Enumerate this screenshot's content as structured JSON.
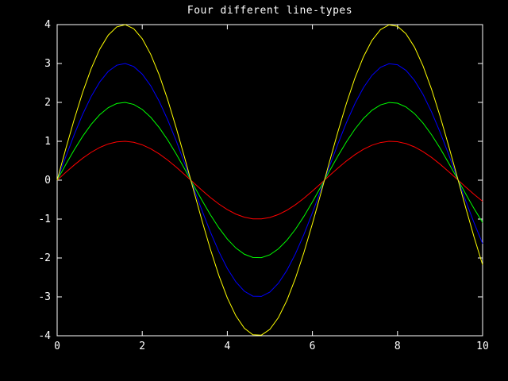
{
  "chart_data": {
    "type": "line",
    "title": "Four different line-types",
    "xlabel": "",
    "ylabel": "",
    "xlim": [
      0,
      10
    ],
    "ylim": [
      -4,
      4
    ],
    "grid": false,
    "x_ticks": [
      "0",
      "2",
      "4",
      "6",
      "8",
      "10"
    ],
    "y_ticks": [
      "4",
      "3",
      "2",
      "1",
      "0",
      "-1",
      "-2",
      "-3",
      "-4"
    ],
    "x": [
      0.0,
      0.2,
      0.4,
      0.6,
      0.8,
      1.0,
      1.2,
      1.4,
      1.6,
      1.8,
      2.0,
      2.2,
      2.4,
      2.6,
      2.8,
      3.0,
      3.2,
      3.4,
      3.6,
      3.8,
      4.0,
      4.2,
      4.4,
      4.6,
      4.8,
      5.0,
      5.2,
      5.4,
      5.6,
      5.8,
      6.0,
      6.2,
      6.4,
      6.6,
      6.8,
      7.0,
      7.2,
      7.4,
      7.6,
      7.8,
      8.0,
      8.2,
      8.4,
      8.6,
      8.8,
      9.0,
      9.2,
      9.4,
      9.6,
      9.8,
      10.0
    ],
    "series": [
      {
        "color": "#ff0000",
        "values": [
          0.0,
          0.199,
          0.389,
          0.565,
          0.717,
          0.841,
          0.932,
          0.985,
          1.0,
          0.974,
          0.909,
          0.808,
          0.675,
          0.516,
          0.335,
          0.141,
          -0.058,
          -0.256,
          -0.443,
          -0.612,
          -0.757,
          -0.872,
          -0.952,
          -0.994,
          -0.996,
          -0.959,
          -0.883,
          -0.773,
          -0.631,
          -0.465,
          -0.279,
          -0.083,
          0.117,
          0.312,
          0.494,
          0.657,
          0.794,
          0.899,
          0.968,
          0.999,
          0.989,
          0.941,
          0.855,
          0.734,
          0.585,
          0.412,
          0.223,
          0.025,
          -0.174,
          -0.366,
          -0.544
        ]
      },
      {
        "color": "#00ff00",
        "values": [
          0.0,
          0.397,
          0.779,
          1.129,
          1.435,
          1.683,
          1.864,
          1.971,
          1.999,
          1.948,
          1.819,
          1.617,
          1.351,
          1.031,
          0.67,
          0.282,
          -0.117,
          -0.511,
          -0.885,
          -1.224,
          -1.514,
          -1.743,
          -1.903,
          -1.987,
          -1.992,
          -1.918,
          -1.766,
          -1.545,
          -1.263,
          -0.93,
          -0.559,
          -0.166,
          0.233,
          0.623,
          0.988,
          1.314,
          1.587,
          1.797,
          1.935,
          1.997,
          1.979,
          1.882,
          1.71,
          1.469,
          1.169,
          0.824,
          0.445,
          0.05,
          -0.348,
          -0.733,
          -1.088
        ]
      },
      {
        "color": "#0000ff",
        "values": [
          0.0,
          0.596,
          1.168,
          1.694,
          2.152,
          2.524,
          2.796,
          2.956,
          2.999,
          2.922,
          2.728,
          2.425,
          2.026,
          1.547,
          1.005,
          0.423,
          -0.175,
          -0.767,
          -1.328,
          -1.836,
          -2.27,
          -2.615,
          -2.855,
          -2.981,
          -2.988,
          -2.877,
          -2.65,
          -2.318,
          -1.894,
          -1.395,
          -0.838,
          -0.249,
          0.35,
          0.935,
          1.482,
          1.971,
          2.381,
          2.696,
          2.903,
          2.995,
          2.968,
          2.823,
          2.565,
          2.203,
          1.754,
          1.236,
          0.668,
          0.075,
          -0.523,
          -1.099,
          -1.632
        ]
      },
      {
        "color": "#ffff00",
        "values": [
          0.0,
          0.795,
          1.558,
          2.259,
          2.869,
          3.366,
          3.728,
          3.941,
          3.998,
          3.895,
          3.637,
          3.234,
          2.702,
          2.062,
          1.34,
          0.564,
          -0.233,
          -1.022,
          -1.771,
          -2.448,
          -3.027,
          -3.486,
          -3.807,
          -3.975,
          -3.984,
          -3.835,
          -3.533,
          -3.09,
          -2.525,
          -1.86,
          -1.118,
          -0.332,
          0.467,
          1.247,
          1.977,
          2.628,
          3.174,
          3.594,
          3.871,
          3.993,
          3.957,
          3.764,
          3.42,
          2.938,
          2.338,
          1.648,
          0.891,
          0.1,
          -0.697,
          -1.465,
          -2.176
        ]
      }
    ]
  }
}
